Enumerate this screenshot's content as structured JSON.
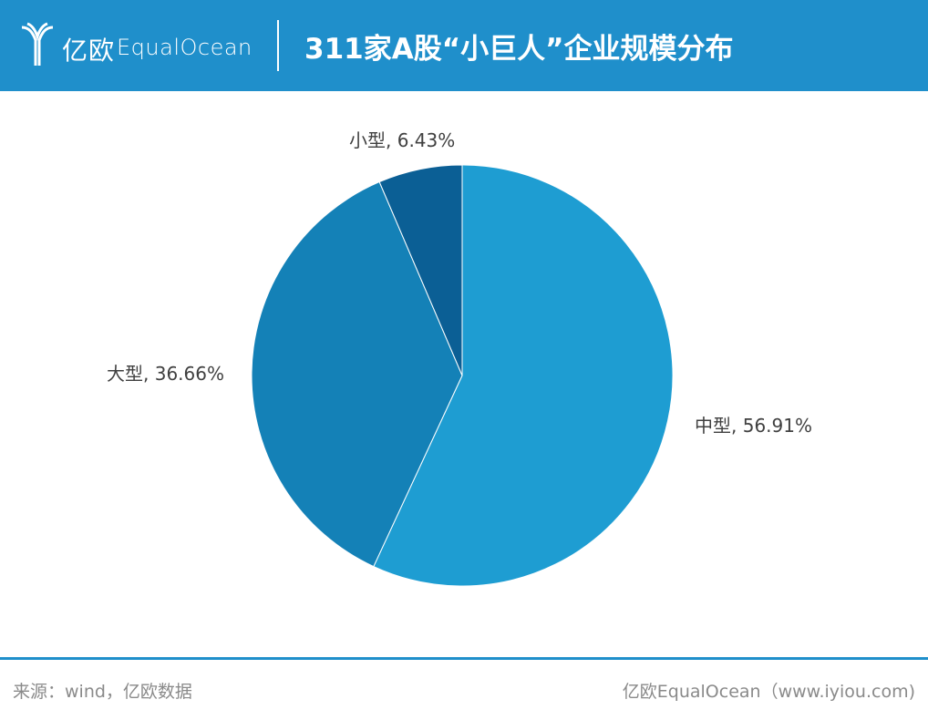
{
  "header": {
    "logo_cn": "亿欧",
    "logo_en": "EqualOcean",
    "title": "311家A股“小巨人”企业规模分布"
  },
  "chart_data": {
    "type": "pie",
    "title": "311家A股“小巨人”企业规模分布",
    "slices": [
      {
        "name": "中型",
        "value": 56.91,
        "label": "中型, 56.91%",
        "color": "#1e9dd2"
      },
      {
        "name": "大型",
        "value": 36.66,
        "label": "大型, 36.66%",
        "color": "#1481b7"
      },
      {
        "name": "小型",
        "value": 6.43,
        "label": "小型, 6.43%",
        "color": "#0b5f95"
      }
    ],
    "start": "12 o'clock",
    "direction": "clockwise"
  },
  "footer": {
    "source": "来源：wind，亿欧数据",
    "credit": "亿欧EqualOcean（www.iyiou.com)"
  },
  "colors": {
    "brand": "#1f8fcb"
  }
}
